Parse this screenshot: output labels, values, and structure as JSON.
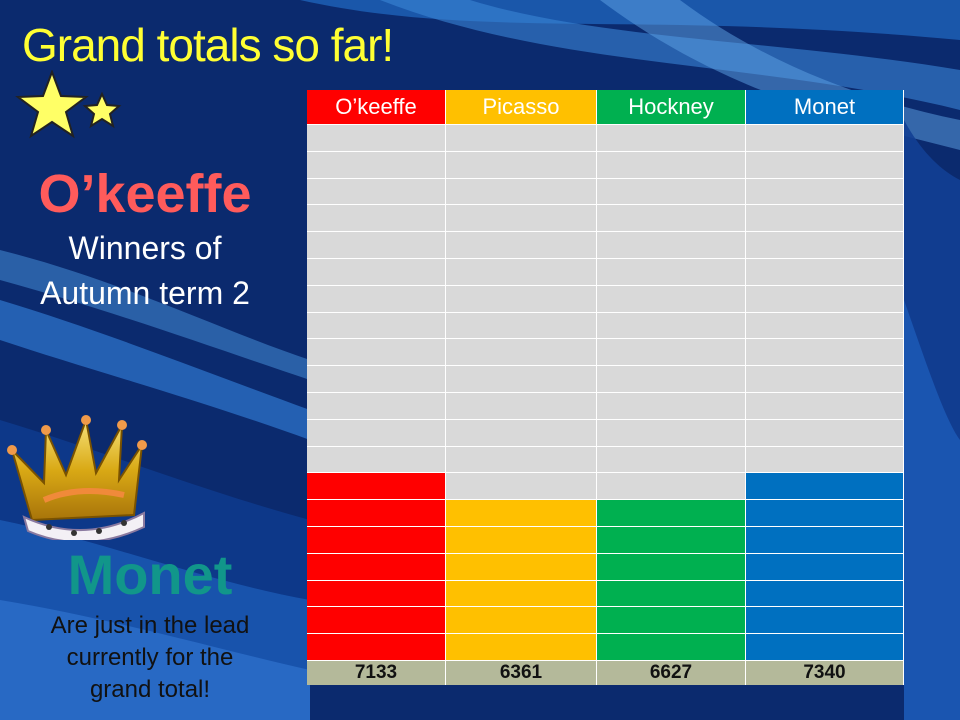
{
  "slide": {
    "title": "Grand totals so far!",
    "winner": {
      "name": "O’keeffe",
      "line1": "Winners of",
      "line2": "Autumn term 2"
    },
    "leader": {
      "name": "Monet",
      "note_lines": [
        "Are just in the lead",
        "currently for the",
        "grand total!"
      ]
    }
  },
  "colors": {
    "background": "#0b2a6e",
    "title": "#ffff33",
    "winner_name": "#ff5b5b",
    "leader_name": "#11968a",
    "empty_cell": "#d9d9d9",
    "total_row": "#b4b99a"
  },
  "icons": [
    "star-icon",
    "crown-icon"
  ],
  "chart_data": {
    "type": "bar",
    "categories": [
      "O’keeffe",
      "Picasso",
      "Hockney",
      "Monet"
    ],
    "values": [
      7133,
      6361,
      6627,
      7340
    ],
    "filled_rows": [
      7,
      6,
      6,
      7
    ],
    "total_rows": 20,
    "series_colors": [
      "#ff0000",
      "#ffc000",
      "#00b050",
      "#0070c0"
    ]
  }
}
